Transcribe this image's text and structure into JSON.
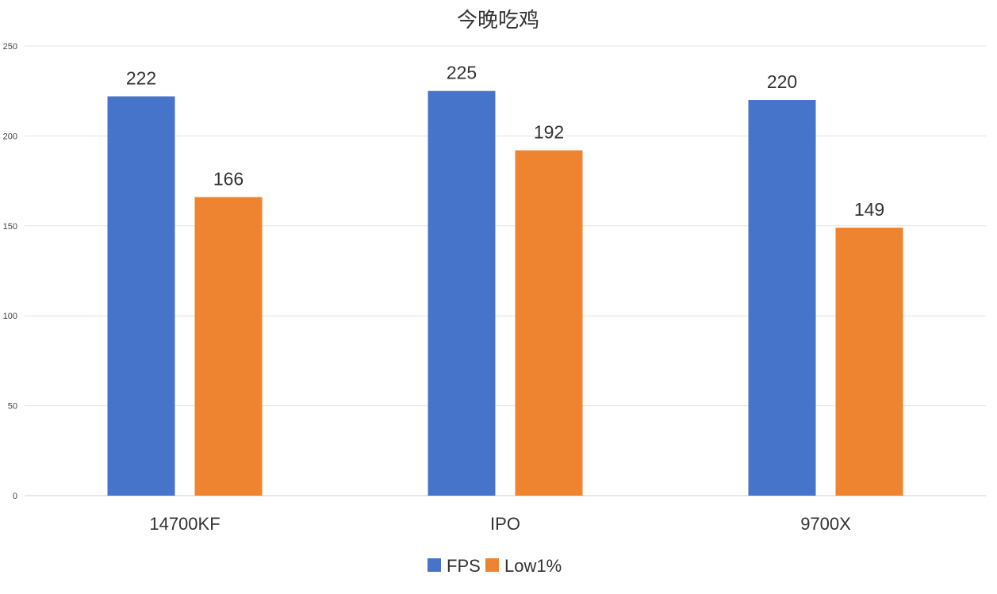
{
  "chart_data": {
    "type": "bar",
    "title": "今晚吃鸡",
    "categories": [
      "14700KF",
      "IPO",
      "9700X"
    ],
    "series": [
      {
        "name": "FPS",
        "values": [
          222,
          225,
          220
        ],
        "color": "#4674CA"
      },
      {
        "name": "Low1%",
        "values": [
          166,
          192,
          149
        ],
        "color": "#EE8330"
      }
    ],
    "ylim": [
      0,
      250
    ],
    "yticks": [
      0,
      50,
      100,
      150,
      200,
      250
    ],
    "grid": true,
    "legend_position": "bottom",
    "data_labels": true
  }
}
